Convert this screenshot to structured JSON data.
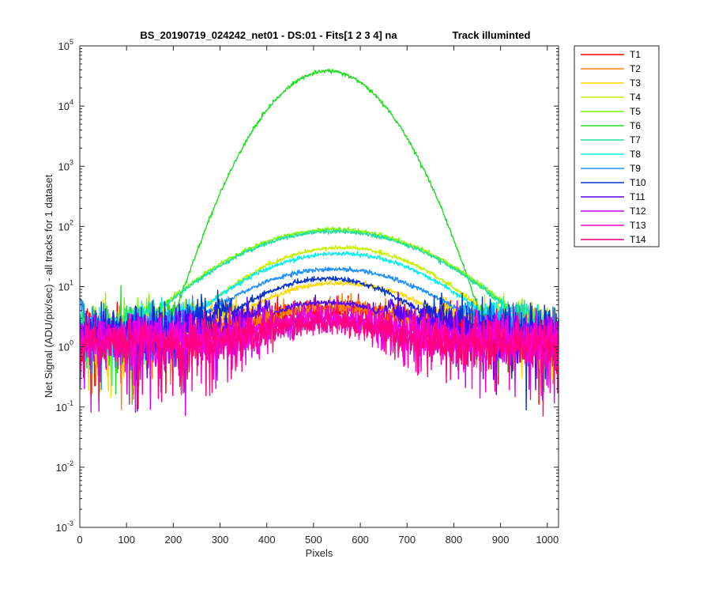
{
  "chart_data": {
    "type": "line",
    "title_left": "BS_20190719_024242_net01 - DS:01 - Fits[1  2  3  4]   na",
    "title_right": "Track illuminted",
    "xlabel": "Pixels",
    "ylabel": "Net Signal (ADU/pix/sec) - all tracks for 1 dataset",
    "xlim": [
      0,
      1024
    ],
    "ylim": [
      0.001,
      100000
    ],
    "yscale": "log",
    "xticks": [
      0,
      100,
      200,
      300,
      400,
      500,
      600,
      700,
      800,
      900,
      1000
    ],
    "yticks": [
      {
        "base": "10",
        "exp": "-3",
        "value": 0.001
      },
      {
        "base": "10",
        "exp": "-2",
        "value": 0.01
      },
      {
        "base": "10",
        "exp": "-1",
        "value": 0.1
      },
      {
        "base": "10",
        "exp": "0",
        "value": 1
      },
      {
        "base": "10",
        "exp": "1",
        "value": 10
      },
      {
        "base": "10",
        "exp": "2",
        "value": 100
      },
      {
        "base": "10",
        "exp": "3",
        "value": 1000
      },
      {
        "base": "10",
        "exp": "4",
        "value": 10000
      },
      {
        "base": "10",
        "exp": "5",
        "value": 100000
      }
    ],
    "grid": false,
    "legend_position": "outside-right-top",
    "series": [
      {
        "name": "T1",
        "color": "#ff0000",
        "peak_x": 550,
        "peak": 2.6,
        "width": 140,
        "noise_level": 1.5
      },
      {
        "name": "T2",
        "color": "#ff7f00",
        "peak_x": 550,
        "peak": 3.0,
        "width": 140,
        "noise_level": 1.5
      },
      {
        "name": "T3",
        "color": "#ffd700",
        "peak_x": 555,
        "peak": 11,
        "width": 135,
        "noise_level": 1.5
      },
      {
        "name": "T4",
        "color": "#c8f000",
        "peak_x": 560,
        "peak": 44,
        "width": 135,
        "noise_level": 1.5
      },
      {
        "name": "T5",
        "color": "#7cfc00",
        "peak_x": 545,
        "peak": 88,
        "width": 150,
        "noise_level": 1.6
      },
      {
        "name": "T6",
        "color": "#22dd22",
        "peak_x": 530,
        "peak": 38000,
        "width": 95,
        "noise_level": 1.8
      },
      {
        "name": "T7",
        "color": "#20e0a0",
        "peak_x": 545,
        "peak": 82,
        "width": 150,
        "noise_level": 1.6
      },
      {
        "name": "T8",
        "color": "#00f0f0",
        "peak_x": 555,
        "peak": 35,
        "width": 140,
        "noise_level": 1.5
      },
      {
        "name": "T9",
        "color": "#1e90ff",
        "peak_x": 545,
        "peak": 19,
        "width": 145,
        "noise_level": 1.5
      },
      {
        "name": "T10",
        "color": "#0033cc",
        "peak_x": 530,
        "peak": 13,
        "width": 120,
        "noise_level": 1.8
      },
      {
        "name": "T11",
        "color": "#5500ff",
        "peak_x": 530,
        "peak": 5,
        "width": 120,
        "noise_level": 1.6
      },
      {
        "name": "T12",
        "color": "#cc00ff",
        "peak_x": 530,
        "peak": 1.6,
        "width": 100,
        "noise_level": 1.3
      },
      {
        "name": "T13",
        "color": "#ff00cc",
        "peak_x": 530,
        "peak": 1.5,
        "width": 100,
        "noise_level": 1.3
      },
      {
        "name": "T14",
        "color": "#ff0080",
        "peak_x": 530,
        "peak": 1.4,
        "width": 100,
        "noise_level": 1.2
      }
    ]
  }
}
